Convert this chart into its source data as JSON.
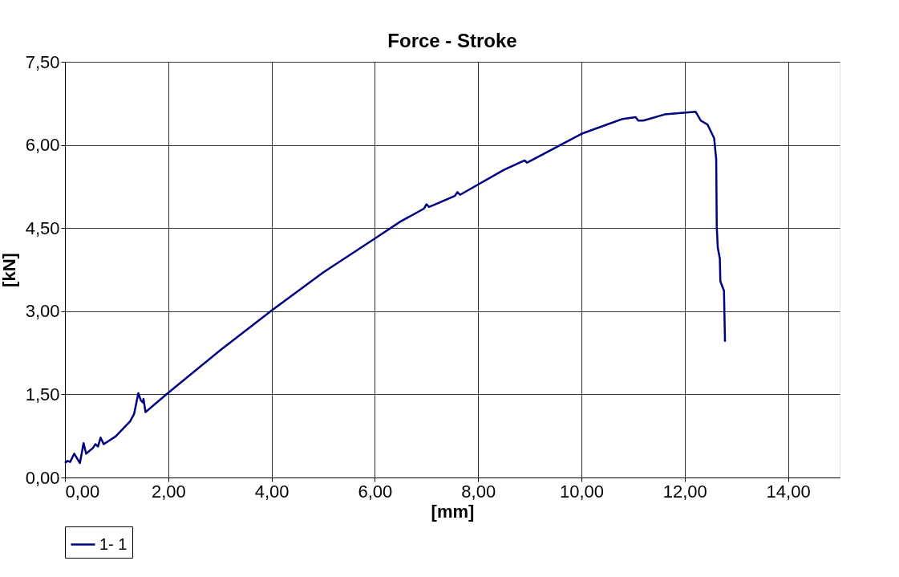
{
  "chart_data": {
    "type": "line",
    "title": "Force - Stroke",
    "xlabel": "[mm]",
    "ylabel": "[kN]",
    "xlim": [
      0,
      15
    ],
    "ylim": [
      0,
      7.5
    ],
    "xticks": [
      {
        "value": 0,
        "label": "0,00"
      },
      {
        "value": 2,
        "label": "2,00"
      },
      {
        "value": 4,
        "label": "4,00"
      },
      {
        "value": 6,
        "label": "6,00"
      },
      {
        "value": 8,
        "label": "8,00"
      },
      {
        "value": 10,
        "label": "10,00"
      },
      {
        "value": 12,
        "label": "12,00"
      },
      {
        "value": 14,
        "label": "14,00"
      }
    ],
    "yticks": [
      {
        "value": 0,
        "label": "0,00"
      },
      {
        "value": 1.5,
        "label": "1,50"
      },
      {
        "value": 3,
        "label": "3,00"
      },
      {
        "value": 4.5,
        "label": "4,50"
      },
      {
        "value": 6,
        "label": "6,00"
      },
      {
        "value": 7.5,
        "label": "7,50"
      }
    ],
    "grid": true,
    "legend": "bottom",
    "marker": "none",
    "line_style": "solid",
    "series": [
      {
        "name": "1- 1",
        "color": "#000080",
        "x": [
          0,
          0.05,
          0.1,
          0.18,
          0.29,
          0.36,
          0.41,
          0.54,
          0.59,
          0.64,
          0.69,
          0.75,
          0.98,
          1.26,
          1.34,
          1.42,
          1.47,
          1.51,
          1.52,
          1.56,
          1.99,
          3.0,
          4.0,
          5.0,
          6.0,
          6.5,
          6.95,
          7.0,
          7.05,
          7.55,
          7.6,
          7.65,
          8.5,
          8.9,
          8.95,
          10.0,
          10.8,
          11.05,
          11.1,
          11.2,
          11.61,
          12.21,
          12.31,
          12.44,
          12.57,
          12.61,
          12.62,
          12.64,
          12.68,
          12.69,
          12.76,
          12.78
        ],
        "values": [
          0.26,
          0.3,
          0.28,
          0.43,
          0.26,
          0.62,
          0.43,
          0.53,
          0.6,
          0.56,
          0.72,
          0.6,
          0.74,
          1.01,
          1.15,
          1.52,
          1.39,
          1.35,
          1.42,
          1.18,
          1.52,
          2.29,
          3.01,
          3.7,
          4.31,
          4.62,
          4.85,
          4.93,
          4.88,
          5.08,
          5.15,
          5.1,
          5.55,
          5.72,
          5.68,
          6.2,
          6.47,
          6.5,
          6.44,
          6.44,
          6.55,
          6.6,
          6.44,
          6.37,
          6.12,
          5.74,
          4.53,
          4.15,
          3.95,
          3.54,
          3.37,
          2.45
        ]
      }
    ]
  }
}
